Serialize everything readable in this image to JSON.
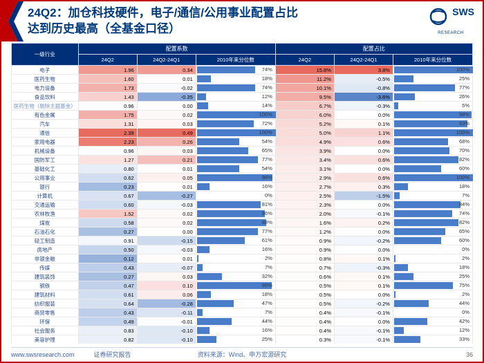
{
  "title_l1": "24Q2：加仓科技硬件，电子/通信/公用事业配置占比",
  "title_l2": "达到历史最高（全基金口径）",
  "logo_main": "SWS",
  "logo_sub": "RESEARCH",
  "footer": {
    "url": "www.swsresearch.com",
    "mid": "证券研究报告",
    "source": "资料来源：Wind、申万宏源研究",
    "page": "36"
  },
  "headers": {
    "industry": "一级行业",
    "group1": "配置系数",
    "group2": "配置占比",
    "c1": "24Q2",
    "c2": "24Q2-24Q1",
    "c3": "2010年来分位数",
    "c4": "24Q2",
    "c5": "24Q2-24Q1",
    "c6": "2010年来分位数"
  },
  "heat": {
    "pos_max": "#e86a5e",
    "pos_mid": "#f4b6ae",
    "pos_low": "#fbe5e1",
    "neg_max": "#5a86c8",
    "neg_low": "#eaf0f9",
    "bar": "#4a7dc9"
  },
  "rows": [
    {
      "n": "电子",
      "v1": 1.96,
      "v2": 0.34,
      "p1": 74,
      "v3": "15.8%",
      "h3": 1.0,
      "v4": "3.8%",
      "h4": 1.0,
      "p2": 100
    },
    {
      "n": "医药生物",
      "v1": 1.6,
      "v2": 0.01,
      "p1": 18,
      "v3": "11.2%",
      "h3": 0.7,
      "v4": "-0.5%",
      "h4": -0.15,
      "p2": 25
    },
    {
      "n": "电力设备",
      "v1": 1.73,
      "v2": -0.02,
      "p1": 74,
      "v3": "10.1%",
      "h3": 0.6,
      "v4": "-0.8%",
      "h4": -0.2,
      "p2": 77
    },
    {
      "n": "食品饮料",
      "v1": 1.43,
      "v2": -0.35,
      "p1": 12,
      "v3": "9.5%",
      "h3": 0.55,
      "v4": "-3.6%",
      "h4": -1.0,
      "p2": 26
    },
    {
      "n": "医药生物（剔除主题基金）",
      "faded": true,
      "v1": 0.96,
      "v2": 0.0,
      "p1": 14,
      "v3": "6.7%",
      "h3": 0.35,
      "v4": "-0.3%",
      "h4": -0.1,
      "p2": 5
    },
    {
      "n": "有色金属",
      "v1": 1.75,
      "v2": 0.02,
      "p1": 100,
      "v3": "6.0%",
      "h3": 0.3,
      "v4": "0.0%",
      "h4": 0.0,
      "p2": 98
    },
    {
      "n": "汽车",
      "v1": 1.31,
      "v2": 0.03,
      "p1": 72,
      "v3": "5.2%",
      "h3": 0.25,
      "v4": "0.1%",
      "h4": 0.05,
      "p2": 93
    },
    {
      "n": "通信",
      "v1": 2.39,
      "v2": 0.49,
      "p1": 100,
      "v3": "5.0%",
      "h3": 0.24,
      "v4": "1.1%",
      "h4": 0.3,
      "p2": 100
    },
    {
      "n": "家用电器",
      "v1": 2.23,
      "v2": 0.26,
      "p1": 54,
      "v3": "4.9%",
      "h3": 0.23,
      "v4": "0.6%",
      "h4": 0.2,
      "p2": 68
    },
    {
      "n": "机械设备",
      "v1": 0.96,
      "v2": 0.03,
      "p1": 65,
      "v3": "3.9%",
      "h3": 0.18,
      "v4": "0.0%",
      "h4": 0.0,
      "p2": 70
    },
    {
      "n": "国防军工",
      "v1": 1.27,
      "v2": 0.21,
      "p1": 77,
      "v3": "3.4%",
      "h3": 0.15,
      "v4": "0.6%",
      "h4": 0.2,
      "p2": 82
    },
    {
      "n": "基础化工",
      "v1": 0.8,
      "v2": 0.01,
      "p1": 54,
      "v3": "3.1%",
      "h3": 0.13,
      "v4": "0.0%",
      "h4": 0.0,
      "p2": 60
    },
    {
      "n": "公用事业",
      "v1": 0.62,
      "v2": 0.05,
      "p1": 96,
      "v3": "2.9%",
      "h3": 0.12,
      "v4": "0.6%",
      "h4": 0.2,
      "p2": 100
    },
    {
      "n": "银行",
      "v1": 0.23,
      "v2": 0.01,
      "p1": 16,
      "v3": "2.7%",
      "h3": 0.11,
      "v4": "0.3%",
      "h4": 0.1,
      "p2": 18
    },
    {
      "n": "计算机",
      "v1": 0.67,
      "v2": -0.27,
      "p1": 0,
      "v3": "2.5%",
      "h3": 0.1,
      "v4": "-1.5%",
      "h4": -0.4,
      "p2": 7
    },
    {
      "n": "交通运输",
      "v1": 0.6,
      "v2": -0.03,
      "p1": 81,
      "v3": "2.3%",
      "h3": 0.09,
      "v4": "0.0%",
      "h4": 0.0,
      "p2": 84
    },
    {
      "n": "农林牧渔",
      "v1": 1.52,
      "v2": 0.02,
      "p1": 86,
      "v3": "2.0%",
      "h3": 0.08,
      "v4": "-0.1%",
      "h4": -0.05,
      "p2": 74
    },
    {
      "n": "煤炭",
      "v1": 0.58,
      "v2": 0.02,
      "p1": 88,
      "v3": "1.6%",
      "h3": 0.06,
      "v4": "0.2%",
      "h4": 0.08,
      "p2": 82
    },
    {
      "n": "石油石化",
      "v1": 0.27,
      "v2": 0.0,
      "p1": 77,
      "v3": "1.2%",
      "h3": 0.04,
      "v4": "0.0%",
      "h4": 0.0,
      "p2": 65
    },
    {
      "n": "轻工制造",
      "v1": 0.91,
      "v2": -0.15,
      "p1": 61,
      "v3": "0.9%",
      "h3": 0.03,
      "v4": "-0.2%",
      "h4": -0.08,
      "p2": 60
    },
    {
      "n": "房地产",
      "v1": 0.5,
      "v2": -0.03,
      "p1": 16,
      "v3": "0.9%",
      "h3": 0.03,
      "v4": "0.0%",
      "h4": 0.0,
      "p2": 0
    },
    {
      "n": "非银金融",
      "v1": 0.12,
      "v2": 0.01,
      "p1": 2,
      "v3": "0.8%",
      "h3": 0.02,
      "v4": "0.1%",
      "h4": 0.05,
      "p2": 2
    },
    {
      "n": "传媒",
      "v1": 0.43,
      "v2": -0.07,
      "p1": 7,
      "v3": "0.7%",
      "h3": 0.02,
      "v4": "-0.3%",
      "h4": -0.1,
      "p2": 18
    },
    {
      "n": "建筑装饰",
      "v1": 0.27,
      "v2": 0.03,
      "p1": 32,
      "v3": "0.6%",
      "h3": 0.02,
      "v4": "0.1%",
      "h4": 0.05,
      "p2": 25
    },
    {
      "n": "钢铁",
      "v1": 0.47,
      "v2": 0.1,
      "p1": 95,
      "v3": "0.5%",
      "h3": 0.01,
      "v4": "0.1%",
      "h4": 0.05,
      "p2": 75
    },
    {
      "n": "建筑材料",
      "v1": 0.61,
      "v2": 0.06,
      "p1": 18,
      "v3": "0.5%",
      "h3": 0.01,
      "v4": "0.0%",
      "h4": 0.0,
      "p2": 2
    },
    {
      "n": "纺织服装",
      "v1": 0.64,
      "v2": -0.28,
      "p1": 47,
      "v3": "0.5%",
      "h3": 0.01,
      "v4": "-0.2%",
      "h4": -0.08,
      "p2": 44
    },
    {
      "n": "商贸零售",
      "v1": 0.43,
      "v2": -0.11,
      "p1": 7,
      "v3": "0.4%",
      "h3": 0.01,
      "v4": "-0.1%",
      "h4": -0.05,
      "p2": 0
    },
    {
      "n": "环保",
      "v1": 0.49,
      "v2": -0.01,
      "p1": 44,
      "v3": "0.4%",
      "h3": 0.01,
      "v4": "0.0%",
      "h4": 0.0,
      "p2": 42
    },
    {
      "n": "社会服务",
      "v1": 0.83,
      "v2": -0.1,
      "p1": 16,
      "v3": "0.4%",
      "h3": 0.01,
      "v4": "-0.1%",
      "h4": -0.05,
      "p2": 12
    },
    {
      "n": "美容护理",
      "v1": 0.82,
      "v2": -0.1,
      "p1": 25,
      "v3": "0.3%",
      "h3": 0.0,
      "v4": "-0.1%",
      "h4": -0.05,
      "p2": 33
    }
  ]
}
